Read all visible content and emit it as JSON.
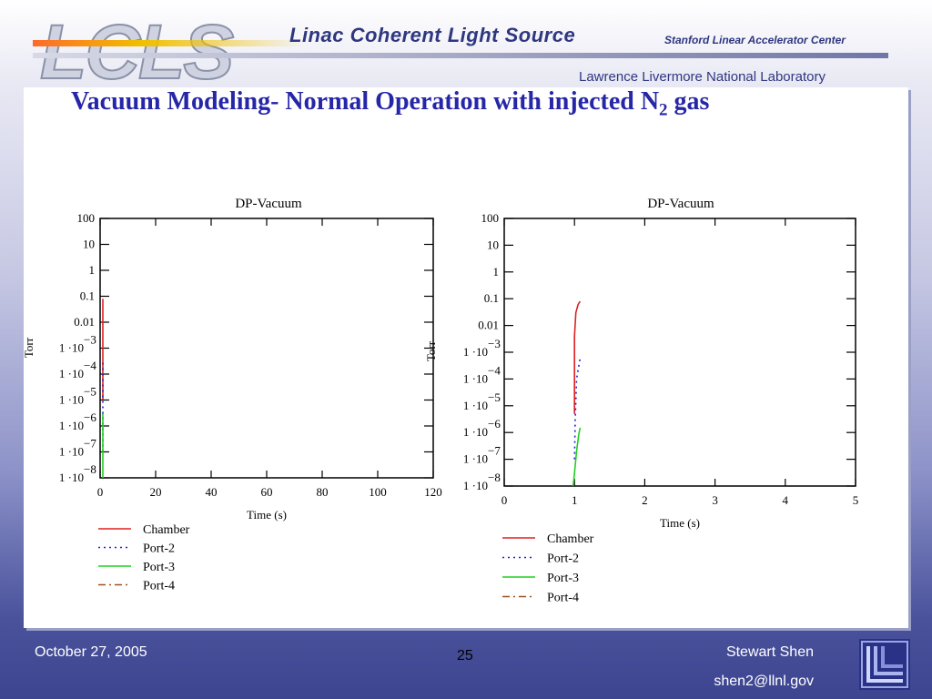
{
  "header": {
    "logo_text": "LCLS",
    "title": "Linac Coherent Light Source",
    "institution": "Stanford Linear Accelerator Center",
    "lab": "Lawrence Livermore National Laboratory"
  },
  "slide": {
    "title_main": "Vacuum Modeling- Normal Operation with injected N",
    "title_sub": "2",
    "title_end": " gas"
  },
  "footer": {
    "date": "October 27,  2005",
    "page": "25",
    "author": "Stewart Shen",
    "email": "shen2@llnl.gov"
  },
  "colors": {
    "title": "#2626a8",
    "chamber": "#e02020",
    "port2": "#2020d0",
    "port3": "#20d020",
    "port4": "#a05020"
  },
  "chart_data": [
    {
      "type": "line",
      "title": "DP-Vacuum",
      "xlabel": "Time (s)",
      "ylabel": "Torr",
      "yscale": "log",
      "xlim": [
        0,
        120
      ],
      "ylim": [
        1e-08,
        100
      ],
      "xticks": [
        "0",
        "20",
        "40",
        "60",
        "80",
        "100",
        "120"
      ],
      "xtick_values": [
        0,
        20,
        40,
        60,
        80,
        100,
        120
      ],
      "yticks": [
        {
          "value": 100,
          "base": "100",
          "exp": ""
        },
        {
          "value": 10,
          "base": "10",
          "exp": ""
        },
        {
          "value": 1,
          "base": "1",
          "exp": ""
        },
        {
          "value": 0.1,
          "base": "0.1",
          "exp": ""
        },
        {
          "value": 0.01,
          "base": "0.01",
          "exp": ""
        },
        {
          "value": 0.001,
          "base": "1 ·10",
          "exp": "−3"
        },
        {
          "value": 0.0001,
          "base": "1 ·10",
          "exp": "−4"
        },
        {
          "value": 1e-05,
          "base": "1 ·10",
          "exp": "−5"
        },
        {
          "value": 1e-06,
          "base": "1 ·10",
          "exp": "−6"
        },
        {
          "value": 1e-07,
          "base": "1 ·10",
          "exp": "−7"
        },
        {
          "value": 1e-08,
          "base": "1 ·10",
          "exp": "−8"
        }
      ],
      "legend_position": "bottom-left",
      "series": [
        {
          "name": "Chamber",
          "dash": "solid",
          "points": [
            [
              1,
              1e-05
            ],
            [
              1,
              0.0003
            ],
            [
              1,
              0.01
            ],
            [
              1,
              0.08
            ]
          ]
        },
        {
          "name": "Port-2",
          "dash": "dotted",
          "points": [
            [
              1,
              1e-07
            ],
            [
              1,
              5e-06
            ],
            [
              1,
              0.0003
            ]
          ]
        },
        {
          "name": "Port-3",
          "dash": "solid",
          "points": [
            [
              1,
              1e-08
            ],
            [
              1,
              2e-07
            ],
            [
              1,
              3e-06
            ]
          ]
        },
        {
          "name": "Port-4",
          "dash": "dashdot",
          "points": []
        }
      ]
    },
    {
      "type": "line",
      "title": "DP-Vacuum",
      "xlabel": "Time (s)",
      "ylabel": "Torr",
      "yscale": "log",
      "xlim": [
        0,
        5
      ],
      "ylim": [
        1e-08,
        100
      ],
      "xticks": [
        "0",
        "1",
        "2",
        "3",
        "4",
        "5"
      ],
      "xtick_values": [
        0,
        1,
        2,
        3,
        4,
        5
      ],
      "yticks": [
        {
          "value": 100,
          "base": "100",
          "exp": ""
        },
        {
          "value": 10,
          "base": "10",
          "exp": ""
        },
        {
          "value": 1,
          "base": "1",
          "exp": ""
        },
        {
          "value": 0.1,
          "base": "0.1",
          "exp": ""
        },
        {
          "value": 0.01,
          "base": "0.01",
          "exp": ""
        },
        {
          "value": 0.001,
          "base": "1 ·10",
          "exp": "−3"
        },
        {
          "value": 0.0001,
          "base": "1 ·10",
          "exp": "−4"
        },
        {
          "value": 1e-05,
          "base": "1 ·10",
          "exp": "−5"
        },
        {
          "value": 1e-06,
          "base": "1 ·10",
          "exp": "−6"
        },
        {
          "value": 1e-07,
          "base": "1 ·10",
          "exp": "−7"
        },
        {
          "value": 1e-08,
          "base": "1 ·10",
          "exp": "−8"
        }
      ],
      "legend_position": "bottom-left",
      "series": [
        {
          "name": "Chamber",
          "dash": "solid",
          "points": [
            [
              1,
              5e-06
            ],
            [
              1,
              0.0001
            ],
            [
              1,
              0.004
            ],
            [
              1.02,
              0.03
            ],
            [
              1.05,
              0.06
            ],
            [
              1.08,
              0.08
            ]
          ]
        },
        {
          "name": "Port-2",
          "dash": "dotted",
          "points": [
            [
              1,
              1e-07
            ],
            [
              1.01,
              3e-06
            ],
            [
              1.03,
              0.0001
            ],
            [
              1.08,
              0.0006
            ]
          ]
        },
        {
          "name": "Port-3",
          "dash": "solid",
          "points": [
            [
              0.98,
              1e-08
            ],
            [
              1,
              3e-08
            ],
            [
              1.03,
              2e-07
            ],
            [
              1.06,
              8e-07
            ],
            [
              1.08,
              1.5e-06
            ]
          ]
        },
        {
          "name": "Port-4",
          "dash": "dashdot",
          "points": []
        }
      ]
    }
  ]
}
